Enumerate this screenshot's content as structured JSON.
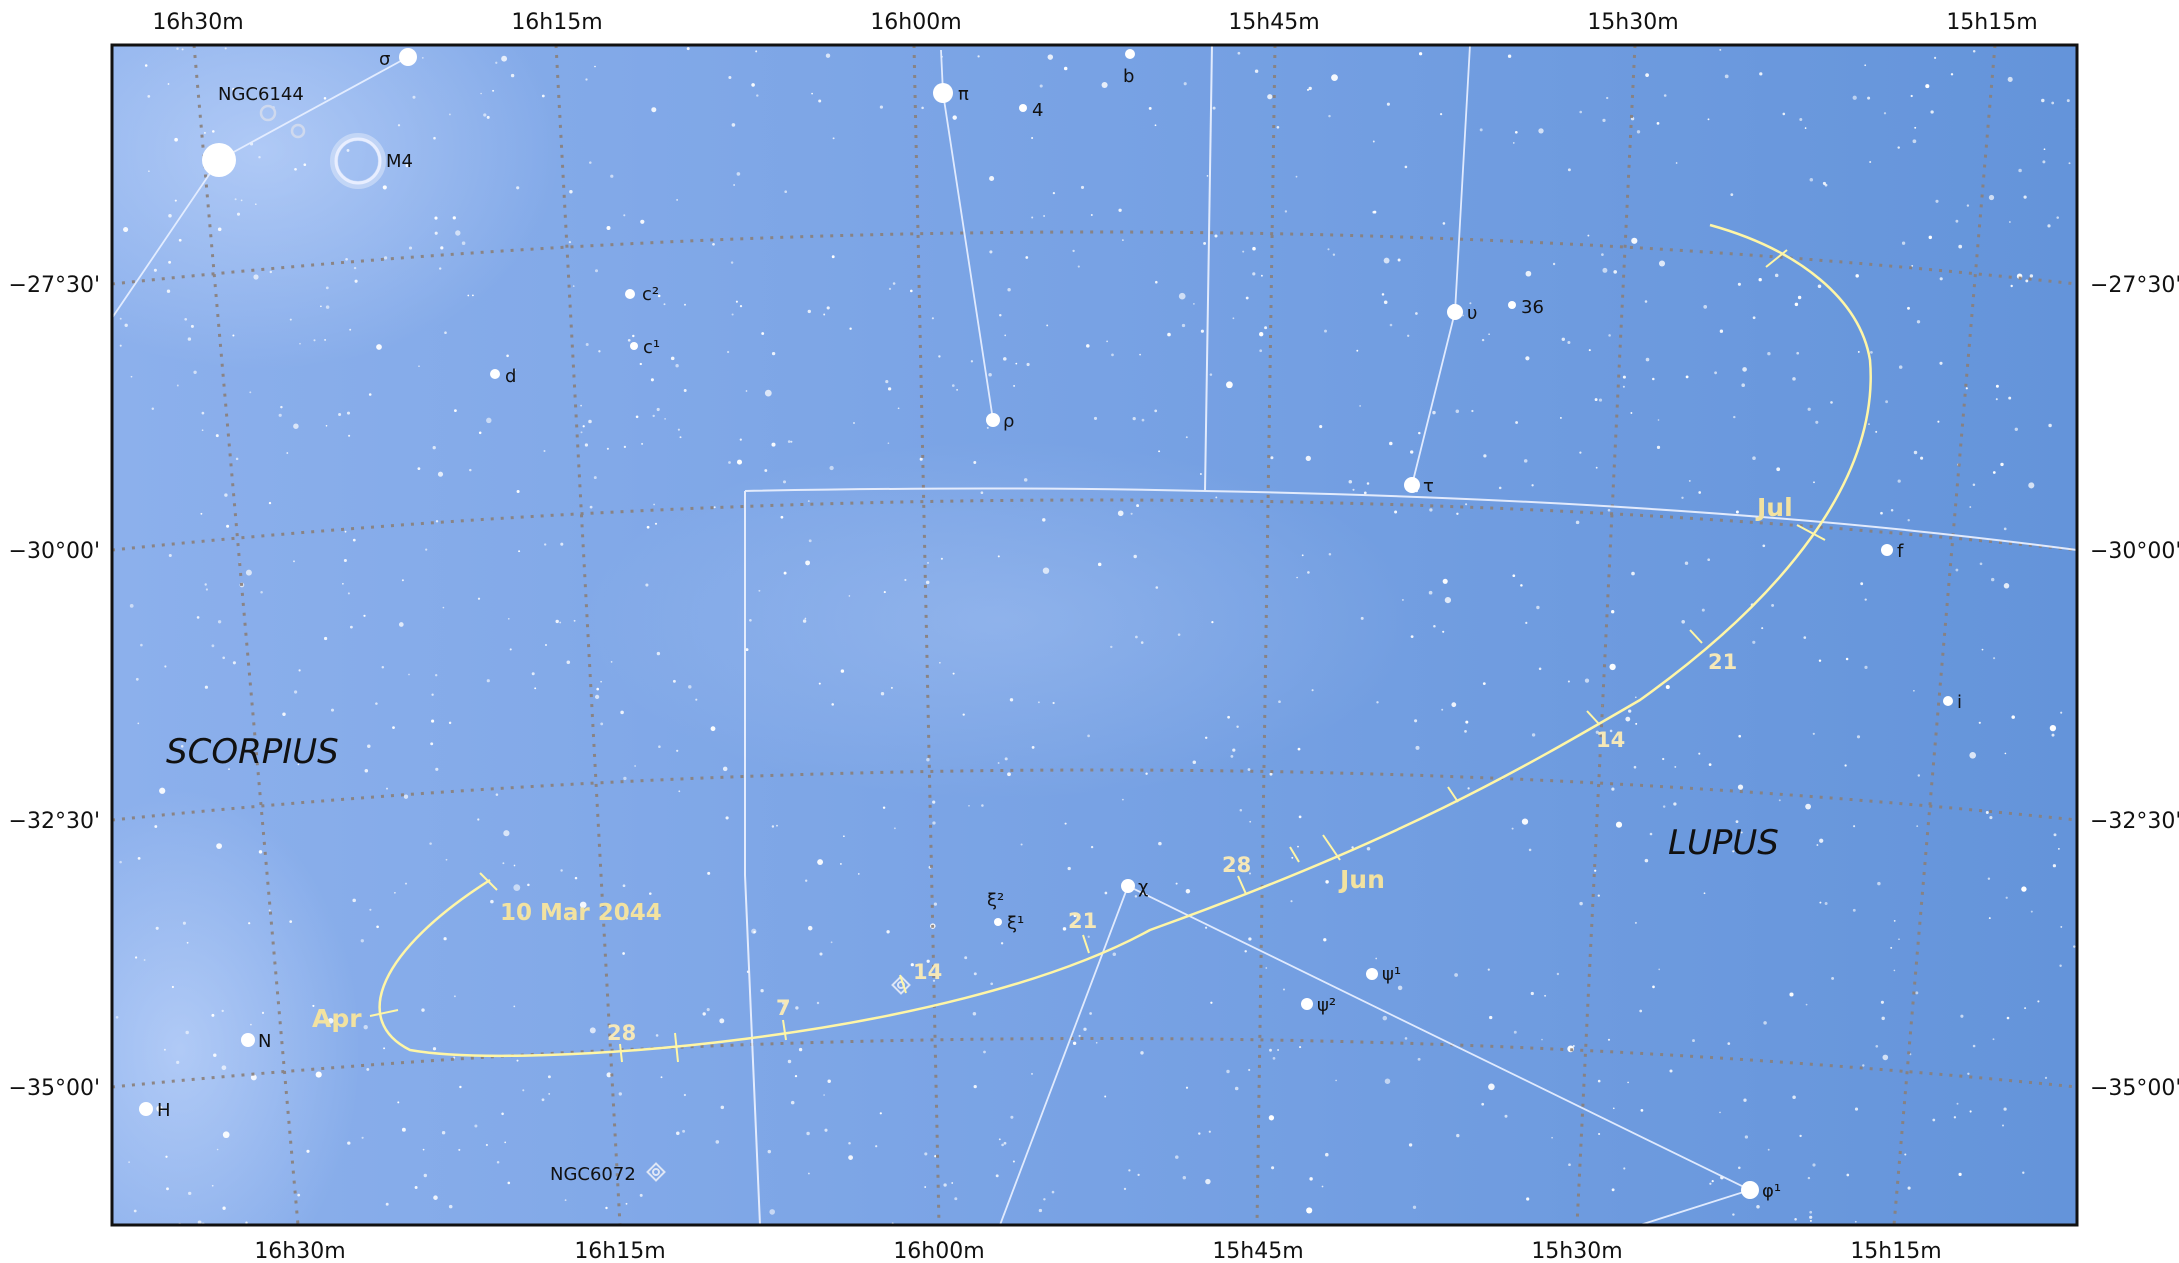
{
  "map": {
    "ra_top_labels": [
      "16h30m",
      "16h15m",
      "16h00m",
      "15h45m",
      "15h30m",
      "15h15m"
    ],
    "ra_bottom_labels": [
      "16h30m",
      "16h15m",
      "16h00m",
      "15h45m",
      "15h30m",
      "15h15m"
    ],
    "dec_left_labels": [
      "−27°30'",
      "−30°00'",
      "−32°30'",
      "−35°00'"
    ],
    "dec_right_labels": [
      "−27°30'",
      "−30°00'",
      "−32°30'",
      "−35°00'"
    ],
    "constellations": [
      "SCORPIUS",
      "LUPUS"
    ],
    "colors": {
      "sky": "#7ba6e6",
      "sky_dark": "#6497dd",
      "grid": "#8a7f7a",
      "boundary": "#f0f4ff",
      "path": "#fff6a6",
      "path_label": "#f5e8b8"
    },
    "stars": [
      {
        "label": "σ",
        "mag": 2.9
      },
      {
        "label": "",
        "mag": 1.0
      },
      {
        "label": "π",
        "mag": 2.9
      },
      {
        "label": "4",
        "mag": 5.6
      },
      {
        "label": "b",
        "mag": 4.7
      },
      {
        "label": "c²",
        "mag": 4.6
      },
      {
        "label": "c¹",
        "mag": 5.0
      },
      {
        "label": "d",
        "mag": 4.8
      },
      {
        "label": "ρ",
        "mag": 3.9
      },
      {
        "label": "υ",
        "mag": 3.5
      },
      {
        "label": "36",
        "mag": 5.3
      },
      {
        "label": "τ",
        "mag": 3.6
      },
      {
        "label": "f",
        "mag": 4.6
      },
      {
        "label": "i",
        "mag": 4.9
      },
      {
        "label": "ξ²",
        "mag": 5.6
      },
      {
        "label": "ξ¹",
        "mag": 5.1
      },
      {
        "label": "χ",
        "mag": 4.0
      },
      {
        "label": "ψ¹",
        "mag": 4.7
      },
      {
        "label": "ψ²",
        "mag": 4.8
      },
      {
        "label": "N",
        "mag": 4.2
      },
      {
        "label": "H",
        "mag": 4.2
      },
      {
        "label": "φ¹",
        "mag": 3.6
      }
    ],
    "deep_sky": [
      {
        "label": "NGC6144",
        "type": "globular-cluster"
      },
      {
        "label": "M4",
        "type": "globular-cluster"
      },
      {
        "label": "NGC6072",
        "type": "planetary-nebula"
      }
    ],
    "path": {
      "start_label": "10 Mar 2044",
      "month_labels": [
        "Apr",
        "Jun",
        "Jul"
      ],
      "day_labels": [
        "28",
        "7",
        "14",
        "21",
        "28",
        "14",
        "21"
      ]
    }
  }
}
